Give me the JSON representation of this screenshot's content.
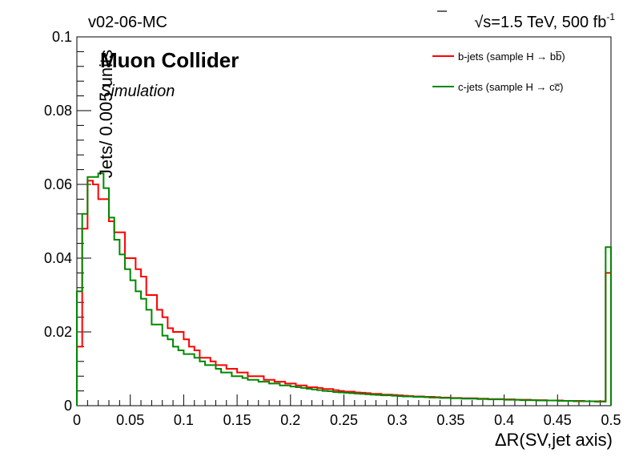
{
  "chart_data": {
    "type": "histogram-step",
    "top_left_label": "v02-06-MC",
    "energy_label": {
      "sqrt": "√",
      "text": "s=1.5 TeV, 500 fb",
      "exp": "-1"
    },
    "brand": "Muon Collider",
    "subbrand": "Simulation",
    "xlabel": "ΔR(SV,jet axis)",
    "ylabel": "Jets/ 0.005 units",
    "xlim": [
      0,
      0.5
    ],
    "ylim": [
      0,
      0.1
    ],
    "bin_width": 0.005,
    "x_ticks": [
      "0",
      "0.05",
      "0.1",
      "0.15",
      "0.2",
      "0.25",
      "0.3",
      "0.35",
      "0.4",
      "0.45",
      "0.5"
    ],
    "y_ticks": [
      "0",
      "0.02",
      "0.04",
      "0.06",
      "0.08",
      "0.1"
    ],
    "legend_position": "top-right",
    "grid": false,
    "series": [
      {
        "name": "b-jets (sample H → bb̅)",
        "color": "#ff0000",
        "values": [
          0.016,
          0.048,
          0.061,
          0.06,
          0.056,
          0.056,
          0.05,
          0.047,
          0.047,
          0.04,
          0.04,
          0.037,
          0.035,
          0.03,
          0.03,
          0.026,
          0.024,
          0.021,
          0.02,
          0.02,
          0.018,
          0.016,
          0.015,
          0.013,
          0.013,
          0.012,
          0.011,
          0.011,
          0.01,
          0.01,
          0.009,
          0.009,
          0.008,
          0.008,
          0.008,
          0.007,
          0.007,
          0.0065,
          0.0065,
          0.006,
          0.006,
          0.0055,
          0.0055,
          0.005,
          0.005,
          0.0048,
          0.0045,
          0.0045,
          0.0042,
          0.004,
          0.0038,
          0.0038,
          0.0036,
          0.0035,
          0.0034,
          0.0032,
          0.0032,
          0.003,
          0.003,
          0.0029,
          0.0028,
          0.0027,
          0.0026,
          0.0025,
          0.0025,
          0.0024,
          0.0024,
          0.0023,
          0.0022,
          0.0022,
          0.0021,
          0.0021,
          0.002,
          0.002,
          0.002,
          0.0019,
          0.0019,
          0.0018,
          0.0018,
          0.0018,
          0.0017,
          0.0017,
          0.0016,
          0.0016,
          0.0016,
          0.0015,
          0.0015,
          0.0015,
          0.0014,
          0.0014,
          0.0014,
          0.0013,
          0.0013,
          0.0013,
          0.0013,
          0.0012,
          0.0012,
          0.0012,
          0.0012,
          0.036
        ]
      },
      {
        "name": "c-jets (sample H → cc̅)",
        "color": "#008800",
        "values": [
          0.031,
          0.052,
          0.062,
          0.062,
          0.063,
          0.059,
          0.051,
          0.045,
          0.041,
          0.037,
          0.034,
          0.031,
          0.029,
          0.026,
          0.022,
          0.022,
          0.019,
          0.018,
          0.016,
          0.015,
          0.014,
          0.014,
          0.013,
          0.012,
          0.011,
          0.011,
          0.01,
          0.009,
          0.009,
          0.008,
          0.008,
          0.0075,
          0.007,
          0.007,
          0.0065,
          0.0065,
          0.006,
          0.006,
          0.0055,
          0.0055,
          0.0052,
          0.005,
          0.0048,
          0.0046,
          0.0044,
          0.0042,
          0.004,
          0.0039,
          0.0037,
          0.0036,
          0.0035,
          0.0034,
          0.0033,
          0.0032,
          0.0031,
          0.003,
          0.0029,
          0.0028,
          0.0028,
          0.0027,
          0.0026,
          0.0025,
          0.0025,
          0.0024,
          0.0024,
          0.0023,
          0.0022,
          0.0022,
          0.0021,
          0.0021,
          0.002,
          0.002,
          0.0019,
          0.0019,
          0.0019,
          0.0018,
          0.0018,
          0.0017,
          0.0017,
          0.0017,
          0.0016,
          0.0016,
          0.0016,
          0.0015,
          0.0015,
          0.0015,
          0.0014,
          0.0014,
          0.0014,
          0.0014,
          0.0013,
          0.0013,
          0.0013,
          0.0012,
          0.0012,
          0.0012,
          0.0012,
          0.0011,
          0.0011,
          0.043
        ]
      }
    ]
  }
}
